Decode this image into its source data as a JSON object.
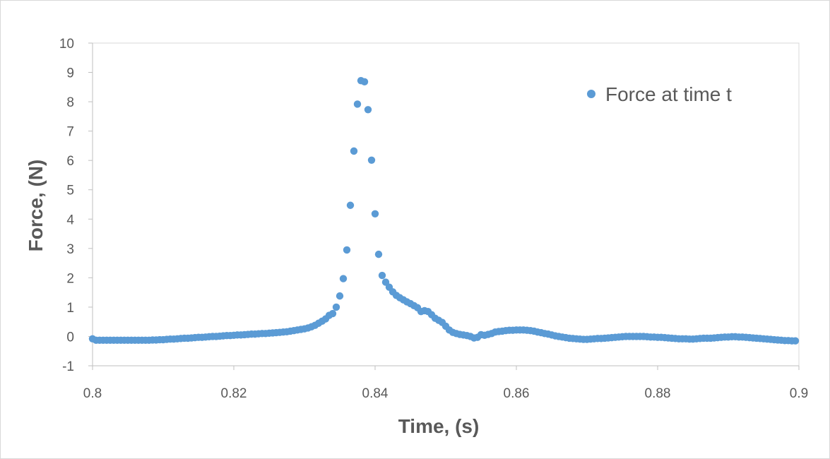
{
  "chart_data": {
    "type": "scatter",
    "title": "",
    "xlabel": "Time, (s)",
    "ylabel": "Force, (N)",
    "xlim": [
      0.8,
      0.9
    ],
    "ylim": [
      -1,
      10
    ],
    "x_ticks": [
      "0.8",
      "0.82",
      "0.84",
      "0.86",
      "0.88",
      "0.9"
    ],
    "y_ticks": [
      "-1",
      "0",
      "1",
      "2",
      "3",
      "4",
      "5",
      "6",
      "7",
      "8",
      "9",
      "10"
    ],
    "grid": false,
    "legend": "top-right",
    "series_color": "#5b9bd5",
    "series": [
      {
        "name": "Force at time t",
        "points": [
          [
            0.8,
            -0.08
          ],
          [
            0.8005,
            -0.13
          ],
          [
            0.801,
            -0.13
          ],
          [
            0.8015,
            -0.13
          ],
          [
            0.802,
            -0.13
          ],
          [
            0.8025,
            -0.13
          ],
          [
            0.803,
            -0.13
          ],
          [
            0.8035,
            -0.13
          ],
          [
            0.804,
            -0.13
          ],
          [
            0.8045,
            -0.13
          ],
          [
            0.805,
            -0.13
          ],
          [
            0.8055,
            -0.13
          ],
          [
            0.806,
            -0.13
          ],
          [
            0.8065,
            -0.13
          ],
          [
            0.807,
            -0.13
          ],
          [
            0.8075,
            -0.13
          ],
          [
            0.808,
            -0.13
          ],
          [
            0.8085,
            -0.12
          ],
          [
            0.809,
            -0.12
          ],
          [
            0.8095,
            -0.11
          ],
          [
            0.81,
            -0.11
          ],
          [
            0.8105,
            -0.1
          ],
          [
            0.811,
            -0.09
          ],
          [
            0.8115,
            -0.09
          ],
          [
            0.812,
            -0.08
          ],
          [
            0.8125,
            -0.07
          ],
          [
            0.813,
            -0.06
          ],
          [
            0.8135,
            -0.06
          ],
          [
            0.814,
            -0.05
          ],
          [
            0.8145,
            -0.04
          ],
          [
            0.815,
            -0.03
          ],
          [
            0.8155,
            -0.03
          ],
          [
            0.816,
            -0.02
          ],
          [
            0.8165,
            -0.01
          ],
          [
            0.817,
            0.0
          ],
          [
            0.8175,
            0.0
          ],
          [
            0.818,
            0.01
          ],
          [
            0.8185,
            0.02
          ],
          [
            0.819,
            0.03
          ],
          [
            0.8195,
            0.03
          ],
          [
            0.82,
            0.04
          ],
          [
            0.8205,
            0.05
          ],
          [
            0.821,
            0.05
          ],
          [
            0.8215,
            0.06
          ],
          [
            0.822,
            0.07
          ],
          [
            0.8225,
            0.08
          ],
          [
            0.823,
            0.08
          ],
          [
            0.8235,
            0.09
          ],
          [
            0.824,
            0.1
          ],
          [
            0.8245,
            0.1
          ],
          [
            0.825,
            0.11
          ],
          [
            0.8255,
            0.12
          ],
          [
            0.826,
            0.13
          ],
          [
            0.8265,
            0.14
          ],
          [
            0.827,
            0.15
          ],
          [
            0.8275,
            0.16
          ],
          [
            0.828,
            0.18
          ],
          [
            0.8285,
            0.2
          ],
          [
            0.829,
            0.22
          ],
          [
            0.8295,
            0.24
          ],
          [
            0.83,
            0.26
          ],
          [
            0.8305,
            0.29
          ],
          [
            0.831,
            0.33
          ],
          [
            0.8315,
            0.38
          ],
          [
            0.832,
            0.45
          ],
          [
            0.8325,
            0.52
          ],
          [
            0.833,
            0.6
          ],
          [
            0.8335,
            0.72
          ],
          [
            0.834,
            0.78
          ],
          [
            0.8345,
            1.0
          ],
          [
            0.835,
            1.38
          ],
          [
            0.8355,
            1.97
          ],
          [
            0.836,
            2.95
          ],
          [
            0.8365,
            4.47
          ],
          [
            0.837,
            6.32
          ],
          [
            0.8375,
            7.92
          ],
          [
            0.838,
            8.72
          ],
          [
            0.8385,
            8.68
          ],
          [
            0.839,
            7.73
          ],
          [
            0.8395,
            6.01
          ],
          [
            0.84,
            4.18
          ],
          [
            0.8405,
            2.8
          ],
          [
            0.841,
            2.08
          ],
          [
            0.8415,
            1.85
          ],
          [
            0.842,
            1.68
          ],
          [
            0.8425,
            1.52
          ],
          [
            0.843,
            1.4
          ],
          [
            0.8435,
            1.32
          ],
          [
            0.844,
            1.25
          ],
          [
            0.8445,
            1.18
          ],
          [
            0.845,
            1.12
          ],
          [
            0.8455,
            1.05
          ],
          [
            0.846,
            0.98
          ],
          [
            0.8465,
            0.85
          ],
          [
            0.847,
            0.88
          ],
          [
            0.8475,
            0.85
          ],
          [
            0.848,
            0.74
          ],
          [
            0.8485,
            0.62
          ],
          [
            0.849,
            0.55
          ],
          [
            0.8495,
            0.48
          ],
          [
            0.85,
            0.35
          ],
          [
            0.8505,
            0.22
          ],
          [
            0.851,
            0.14
          ],
          [
            0.8515,
            0.1
          ],
          [
            0.852,
            0.07
          ],
          [
            0.8525,
            0.05
          ],
          [
            0.853,
            0.03
          ],
          [
            0.8535,
            0.0
          ],
          [
            0.854,
            -0.05
          ],
          [
            0.8545,
            -0.03
          ],
          [
            0.855,
            0.06
          ],
          [
            0.8555,
            0.04
          ],
          [
            0.856,
            0.07
          ],
          [
            0.8565,
            0.1
          ],
          [
            0.857,
            0.15
          ],
          [
            0.8575,
            0.17
          ],
          [
            0.858,
            0.18
          ],
          [
            0.8585,
            0.2
          ],
          [
            0.859,
            0.21
          ],
          [
            0.8595,
            0.21
          ],
          [
            0.86,
            0.22
          ],
          [
            0.8605,
            0.22
          ],
          [
            0.861,
            0.22
          ],
          [
            0.8615,
            0.21
          ],
          [
            0.862,
            0.2
          ],
          [
            0.8625,
            0.18
          ],
          [
            0.863,
            0.15
          ],
          [
            0.8635,
            0.13
          ],
          [
            0.864,
            0.1
          ],
          [
            0.8645,
            0.08
          ],
          [
            0.865,
            0.05
          ],
          [
            0.8655,
            0.02
          ],
          [
            0.866,
            0.0
          ],
          [
            0.8665,
            -0.02
          ],
          [
            0.867,
            -0.04
          ],
          [
            0.8675,
            -0.06
          ],
          [
            0.868,
            -0.07
          ],
          [
            0.8685,
            -0.08
          ],
          [
            0.869,
            -0.09
          ],
          [
            0.8695,
            -0.1
          ],
          [
            0.87,
            -0.1
          ],
          [
            0.8705,
            -0.09
          ],
          [
            0.871,
            -0.08
          ],
          [
            0.8715,
            -0.07
          ],
          [
            0.872,
            -0.07
          ],
          [
            0.8725,
            -0.06
          ],
          [
            0.873,
            -0.05
          ],
          [
            0.8735,
            -0.04
          ],
          [
            0.874,
            -0.03
          ],
          [
            0.8745,
            -0.02
          ],
          [
            0.875,
            -0.01
          ],
          [
            0.8755,
            0.0
          ],
          [
            0.876,
            0.0
          ],
          [
            0.8765,
            0.0
          ],
          [
            0.877,
            0.0
          ],
          [
            0.8775,
            0.0
          ],
          [
            0.878,
            0.0
          ],
          [
            0.8785,
            -0.01
          ],
          [
            0.879,
            -0.02
          ],
          [
            0.8795,
            -0.02
          ],
          [
            0.88,
            -0.03
          ],
          [
            0.8805,
            -0.03
          ],
          [
            0.881,
            -0.04
          ],
          [
            0.8815,
            -0.05
          ],
          [
            0.882,
            -0.06
          ],
          [
            0.8825,
            -0.07
          ],
          [
            0.883,
            -0.08
          ],
          [
            0.8835,
            -0.08
          ],
          [
            0.884,
            -0.08
          ],
          [
            0.8845,
            -0.09
          ],
          [
            0.885,
            -0.09
          ],
          [
            0.8855,
            -0.08
          ],
          [
            0.886,
            -0.07
          ],
          [
            0.8865,
            -0.06
          ],
          [
            0.887,
            -0.06
          ],
          [
            0.8875,
            -0.06
          ],
          [
            0.888,
            -0.05
          ],
          [
            0.8885,
            -0.04
          ],
          [
            0.889,
            -0.03
          ],
          [
            0.8895,
            -0.02
          ],
          [
            0.89,
            -0.02
          ],
          [
            0.8905,
            -0.01
          ],
          [
            0.891,
            -0.01
          ],
          [
            0.8915,
            -0.02
          ],
          [
            0.892,
            -0.02
          ],
          [
            0.8925,
            -0.03
          ],
          [
            0.893,
            -0.04
          ],
          [
            0.8935,
            -0.05
          ],
          [
            0.894,
            -0.06
          ],
          [
            0.8945,
            -0.07
          ],
          [
            0.895,
            -0.08
          ],
          [
            0.8955,
            -0.09
          ],
          [
            0.896,
            -0.1
          ],
          [
            0.8965,
            -0.11
          ],
          [
            0.897,
            -0.12
          ],
          [
            0.8975,
            -0.13
          ],
          [
            0.898,
            -0.14
          ],
          [
            0.8985,
            -0.14
          ],
          [
            0.899,
            -0.15
          ],
          [
            0.8995,
            -0.15
          ]
        ]
      }
    ]
  }
}
